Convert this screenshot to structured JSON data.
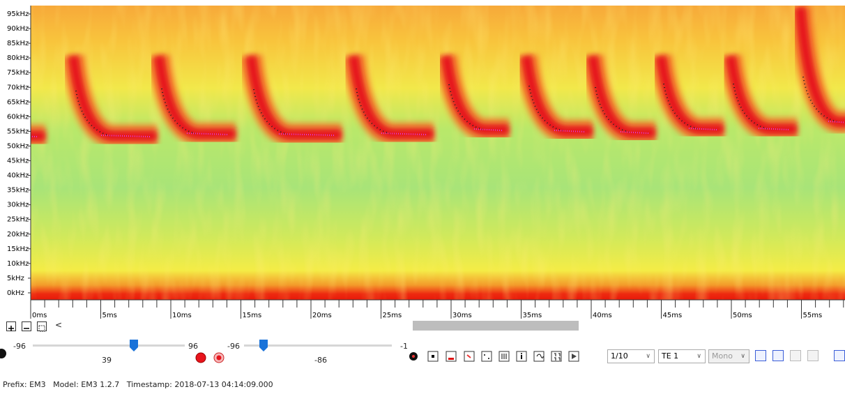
{
  "frequency_axis": {
    "labels": [
      "95kHz",
      "90kHz",
      "85kHz",
      "80kHz",
      "75kHz",
      "70kHz",
      "65kHz",
      "60kHz",
      "55kHz",
      "50kHz",
      "45kHz",
      "40kHz",
      "35kHz",
      "30kHz",
      "25kHz",
      "20kHz",
      "15kHz",
      "10kHz",
      "5kHz",
      "0kHz"
    ]
  },
  "time_axis": {
    "labels": [
      "0ms",
      "5ms",
      "10ms",
      "15ms",
      "20ms",
      "25ms",
      "30ms",
      "35ms",
      "40ms",
      "45ms",
      "50ms",
      "55ms"
    ]
  },
  "toolbar": {
    "scroll_left": "<"
  },
  "controls": {
    "slider1": {
      "min": "-96",
      "value": "39",
      "max": "96"
    },
    "slider2": {
      "min": "-96",
      "value": "-86",
      "max": "-1"
    },
    "speed": "1/10",
    "channel": "TE 1",
    "mode": "Mono"
  },
  "status": {
    "prefix": "Prefix: EM3",
    "model": "Model: EM3 1.2.7",
    "timestamp": "Timestamp: 2018-07-13 04:14:09.000"
  }
}
